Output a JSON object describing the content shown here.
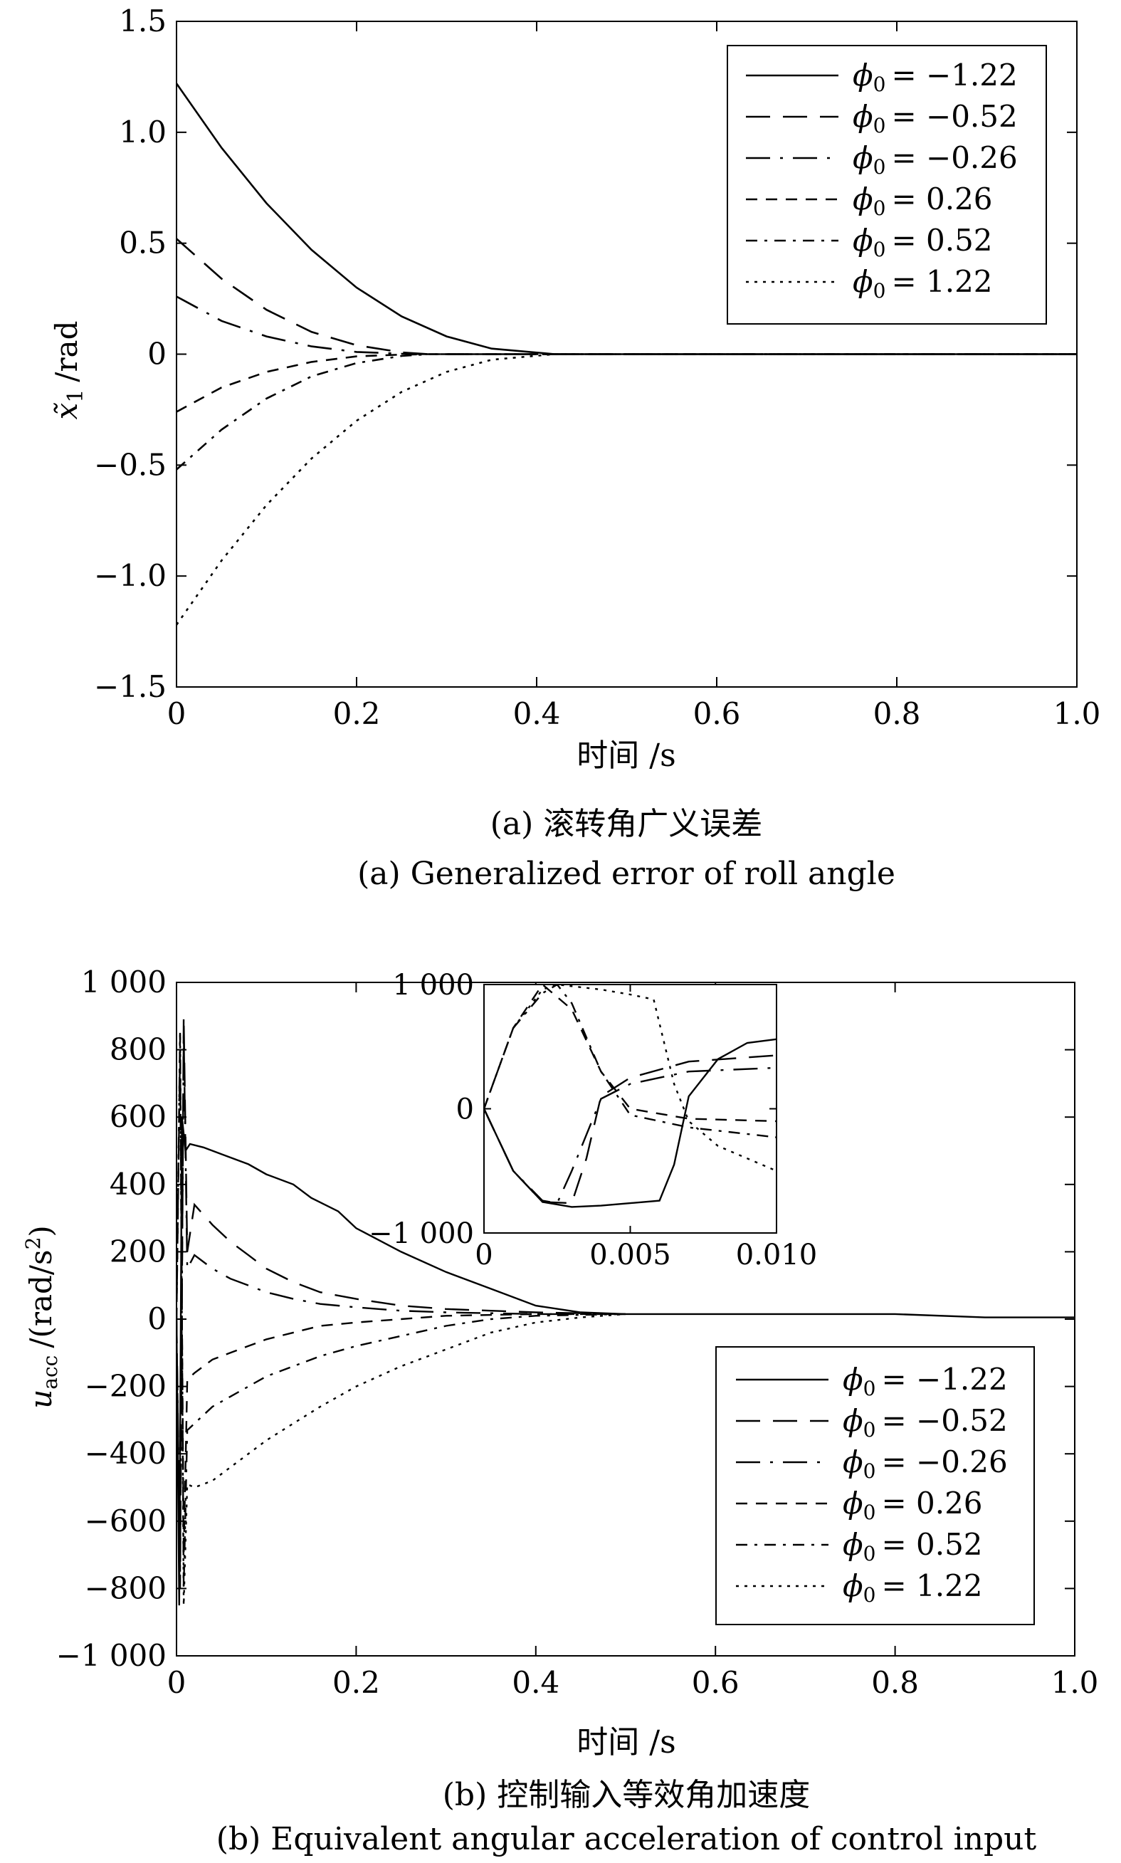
{
  "chart_data": [
    {
      "type": "line",
      "xlabel": "时间 /s",
      "ylabel_symbol": "x̃",
      "ylabel_sub": "1",
      "ylabel_unit": "/rad",
      "xlim": [
        0,
        1.0
      ],
      "ylim": [
        -1.5,
        1.5
      ],
      "xticks": [
        "0",
        "0.2",
        "0.4",
        "0.6",
        "0.8",
        "1.0"
      ],
      "yticks": [
        "1.5",
        "1.0",
        "0.5",
        "0",
        "−0.5",
        "−1.0",
        "−1.5"
      ],
      "legend_position": "top-right",
      "caption_cn": "(a) 滚转角广义误差",
      "caption_en": "(a) Generalized error of roll angle",
      "series": [
        {
          "name": "ϕ0 = −1.22",
          "label": "−1.22",
          "style": "solid",
          "x": [
            0,
            0.05,
            0.1,
            0.15,
            0.2,
            0.25,
            0.3,
            0.35,
            0.42,
            0.6,
            0.8,
            1.0
          ],
          "y": [
            1.22,
            0.93,
            0.68,
            0.47,
            0.3,
            0.17,
            0.08,
            0.025,
            0,
            0,
            0,
            0
          ]
        },
        {
          "name": "ϕ0 = −0.52",
          "label": "−0.52",
          "style": "longdash",
          "x": [
            0,
            0.05,
            0.1,
            0.15,
            0.2,
            0.25,
            0.28,
            0.4,
            0.6,
            0.8,
            1.0
          ],
          "y": [
            0.52,
            0.34,
            0.2,
            0.1,
            0.04,
            0.008,
            0,
            0,
            0,
            0,
            0
          ]
        },
        {
          "name": "ϕ0 = −0.26",
          "label": "−0.26",
          "style": "dashdotlong",
          "x": [
            0,
            0.05,
            0.1,
            0.15,
            0.2,
            0.25,
            0.28,
            0.4,
            0.6,
            0.8,
            1.0
          ],
          "y": [
            0.26,
            0.15,
            0.08,
            0.035,
            0.01,
            0.002,
            0,
            0,
            0,
            0,
            0
          ]
        },
        {
          "name": "ϕ0 = 0.26",
          "label": "0.26",
          "style": "dash",
          "x": [
            0,
            0.05,
            0.1,
            0.15,
            0.2,
            0.25,
            0.28,
            0.4,
            0.6,
            0.8,
            1.0
          ],
          "y": [
            -0.26,
            -0.15,
            -0.08,
            -0.035,
            -0.01,
            -0.002,
            0,
            0,
            0,
            0,
            0
          ]
        },
        {
          "name": "ϕ0 = 0.52",
          "label": "0.52",
          "style": "dashdot",
          "x": [
            0,
            0.05,
            0.1,
            0.15,
            0.2,
            0.25,
            0.28,
            0.4,
            0.6,
            0.8,
            1.0
          ],
          "y": [
            -0.52,
            -0.34,
            -0.2,
            -0.1,
            -0.04,
            -0.008,
            0,
            0,
            0,
            0,
            0
          ]
        },
        {
          "name": "ϕ0 = 1.22",
          "label": "1.22",
          "style": "dot",
          "x": [
            0,
            0.05,
            0.1,
            0.15,
            0.2,
            0.25,
            0.3,
            0.35,
            0.42,
            0.6,
            0.8,
            1.0
          ],
          "y": [
            -1.22,
            -0.93,
            -0.68,
            -0.47,
            -0.3,
            -0.17,
            -0.08,
            -0.025,
            0,
            0,
            0,
            0
          ]
        }
      ]
    },
    {
      "type": "line",
      "xlabel": "时间 /s",
      "ylabel_symbol": "u",
      "ylabel_sub": "acc",
      "ylabel_unit": "/(rad/s",
      "ylabel_sup": "2",
      "ylabel_close": ")",
      "xlim": [
        0,
        1.0
      ],
      "ylim": [
        -1000,
        1000
      ],
      "xticks": [
        "0",
        "0.2",
        "0.4",
        "0.6",
        "0.8",
        "1.0"
      ],
      "yticks": [
        "1 000",
        "800",
        "600",
        "400",
        "200",
        "0",
        "−200",
        "−400",
        "−600",
        "−800",
        "−1 000"
      ],
      "legend_position": "bottom-right",
      "caption_cn": "(b) 控制输入等效角加速度",
      "caption_en": "(b) Equivalent angular acceleration of control input",
      "inset": {
        "xlim": [
          0,
          0.01
        ],
        "ylim": [
          -1000,
          1000
        ],
        "xticks": [
          "0",
          "0.005",
          "0.010"
        ],
        "yticks": [
          "1 000",
          "0",
          "−1 000"
        ],
        "series": [
          {
            "name": "ϕ0 = −1.22",
            "style": "solid",
            "x": [
              0,
              0.001,
              0.002,
              0.003,
              0.004,
              0.005,
              0.006,
              0.0065,
              0.007,
              0.008,
              0.009,
              0.01
            ],
            "y": [
              0,
              -500,
              -750,
              -790,
              -780,
              -760,
              -740,
              -450,
              100,
              400,
              530,
              560
            ]
          },
          {
            "name": "ϕ0 = −0.52",
            "style": "longdash",
            "x": [
              0,
              0.001,
              0.002,
              0.003,
              0.0035,
              0.004,
              0.005,
              0.007,
              0.01
            ],
            "y": [
              0,
              -500,
              -750,
              -760,
              -400,
              100,
              250,
              380,
              430
            ]
          },
          {
            "name": "ϕ0 = −0.26",
            "style": "dashdotlong",
            "x": [
              0,
              0.001,
              0.002,
              0.0025,
              0.003,
              0.004,
              0.005,
              0.007,
              0.01
            ],
            "y": [
              0,
              -500,
              -740,
              -760,
              -500,
              80,
              200,
              300,
              330
            ]
          },
          {
            "name": "ϕ0 = 0.26",
            "style": "dash",
            "x": [
              0,
              0.001,
              0.002,
              0.003,
              0.004,
              0.005,
              0.007,
              0.01
            ],
            "y": [
              0,
              650,
              1000,
              800,
              300,
              0,
              -80,
              -100
            ]
          },
          {
            "name": "ϕ0 = 0.52",
            "style": "dashdot",
            "x": [
              0,
              0.001,
              0.002,
              0.0025,
              0.003,
              0.004,
              0.005,
              0.007,
              0.01
            ],
            "y": [
              0,
              650,
              930,
              1000,
              850,
              300,
              -50,
              -150,
              -230
            ]
          },
          {
            "name": "ϕ0 = 1.22",
            "style": "dot",
            "x": [
              0,
              0.001,
              0.002,
              0.0025,
              0.004,
              0.005,
              0.0058,
              0.0065,
              0.007,
              0.008,
              0.01
            ],
            "y": [
              0,
              650,
              960,
              1000,
              960,
              920,
              880,
              200,
              -100,
              -300,
              -500
            ]
          }
        ]
      },
      "series": [
        {
          "name": "ϕ0 = −1.22",
          "label": "−1.22",
          "style": "solid",
          "x": [
            0,
            0.003,
            0.006,
            0.01,
            0.015,
            0.03,
            0.05,
            0.08,
            0.1,
            0.13,
            0.15,
            0.18,
            0.2,
            0.25,
            0.3,
            0.35,
            0.4,
            0.45,
            0.5,
            0.6,
            0.7,
            0.8,
            0.9,
            1.0
          ],
          "y": [
            0,
            -850,
            600,
            500,
            520,
            510,
            490,
            460,
            430,
            400,
            360,
            320,
            270,
            200,
            140,
            90,
            40,
            20,
            15,
            15,
            15,
            15,
            5,
            5
          ]
        },
        {
          "name": "ϕ0 = −0.52",
          "label": "−0.52",
          "style": "longdash",
          "x": [
            0,
            0.004,
            0.008,
            0.012,
            0.02,
            0.04,
            0.06,
            0.08,
            0.1,
            0.13,
            0.16,
            0.2,
            0.25,
            0.3,
            0.35,
            0.4,
            0.5
          ],
          "y": [
            0,
            -800,
            900,
            200,
            340,
            280,
            230,
            190,
            150,
            110,
            80,
            60,
            40,
            30,
            25,
            20,
            15
          ]
        },
        {
          "name": "ϕ0 = −0.26",
          "label": "−0.26",
          "style": "dashdotlong",
          "x": [
            0,
            0.004,
            0.008,
            0.012,
            0.02,
            0.04,
            0.06,
            0.08,
            0.1,
            0.13,
            0.16,
            0.2,
            0.25,
            0.3,
            0.4,
            0.5
          ],
          "y": [
            0,
            -750,
            850,
            150,
            190,
            150,
            120,
            100,
            80,
            60,
            45,
            35,
            25,
            20,
            15,
            15
          ]
        },
        {
          "name": "ϕ0 = 0.26",
          "label": "0.26",
          "style": "dash",
          "x": [
            0,
            0.004,
            0.008,
            0.012,
            0.02,
            0.04,
            0.06,
            0.08,
            0.1,
            0.13,
            0.16,
            0.2,
            0.25,
            0.3,
            0.4,
            0.5
          ],
          "y": [
            0,
            800,
            -700,
            -180,
            -160,
            -120,
            -100,
            -80,
            -60,
            -40,
            -20,
            -10,
            0,
            10,
            15,
            15
          ]
        },
        {
          "name": "ϕ0 = 0.52",
          "label": "0.52",
          "style": "dashdot",
          "x": [
            0,
            0.004,
            0.008,
            0.012,
            0.02,
            0.04,
            0.06,
            0.08,
            0.1,
            0.13,
            0.16,
            0.2,
            0.25,
            0.3,
            0.35,
            0.4,
            0.5
          ],
          "y": [
            0,
            850,
            -800,
            -330,
            -310,
            -260,
            -230,
            -200,
            -170,
            -140,
            -110,
            -80,
            -50,
            -20,
            0,
            10,
            15
          ]
        },
        {
          "name": "ϕ0 = 1.22",
          "label": "1.22",
          "style": "dot",
          "x": [
            0,
            0.004,
            0.008,
            0.012,
            0.02,
            0.04,
            0.06,
            0.08,
            0.1,
            0.13,
            0.16,
            0.2,
            0.25,
            0.3,
            0.35,
            0.4,
            0.45,
            0.5
          ],
          "y": [
            0,
            850,
            -850,
            -490,
            -500,
            -480,
            -440,
            -400,
            -360,
            -310,
            -260,
            -200,
            -140,
            -90,
            -40,
            -10,
            5,
            15
          ]
        }
      ]
    }
  ]
}
